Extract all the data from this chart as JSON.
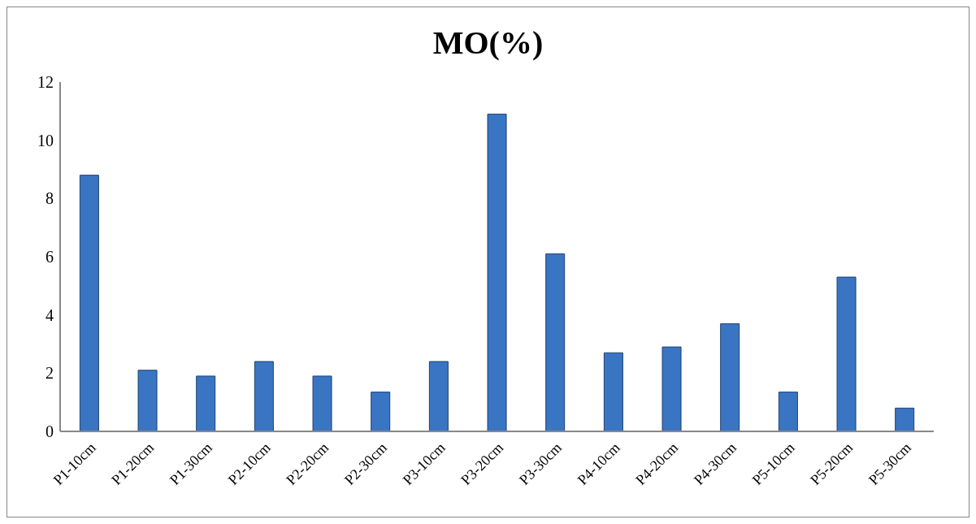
{
  "chart_data": {
    "type": "bar",
    "title": "MO(%)",
    "categories": [
      "P1-10cm",
      "P1-20cm",
      "P1-30cm",
      "P2-10cm",
      "P2-20cm",
      "P2-30cm",
      "P3-10cm",
      "P3-20cm",
      "P3-30cm",
      "P4-10cm",
      "P4-20cm",
      "P4-30cm",
      "P5-10cm",
      "P5-20cm",
      "P5-30cm"
    ],
    "values": [
      8.8,
      2.1,
      1.9,
      2.4,
      1.9,
      1.35,
      2.4,
      10.9,
      6.1,
      2.7,
      2.9,
      3.7,
      1.35,
      5.3,
      0.8
    ],
    "color": "#3a75c4",
    "ylim": [
      0,
      12
    ],
    "yticks": [
      0,
      2,
      4,
      6,
      8,
      10,
      12
    ],
    "grid": false
  }
}
